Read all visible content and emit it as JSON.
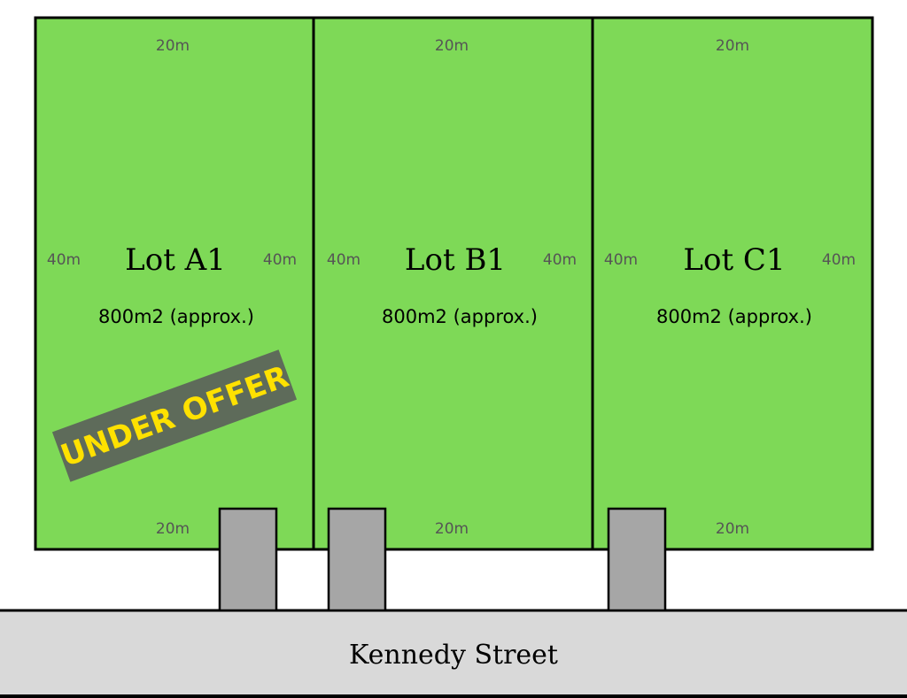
{
  "colors": {
    "lot_fill": "#7ed957",
    "driveway_fill": "#a6a6a6",
    "street_fill": "#d9d9d9",
    "banner_fill": "#5e6b5a",
    "banner_text": "#ffe100"
  },
  "lots": [
    {
      "name": "Lot A1",
      "area": "800m2 (approx.)",
      "top": "20m",
      "bottom": "20m",
      "left": "40m",
      "right": "40m"
    },
    {
      "name": "Lot B1",
      "area": "800m2 (approx.)",
      "top": "20m",
      "bottom": "20m",
      "left": "40m",
      "right": "40m"
    },
    {
      "name": "Lot C1",
      "area": "800m2 (approx.)",
      "top": "20m",
      "bottom": "20m",
      "left": "40m",
      "right": "40m"
    }
  ],
  "banner": {
    "text": "UNDER OFFER"
  },
  "street": {
    "name": "Kennedy Street"
  }
}
